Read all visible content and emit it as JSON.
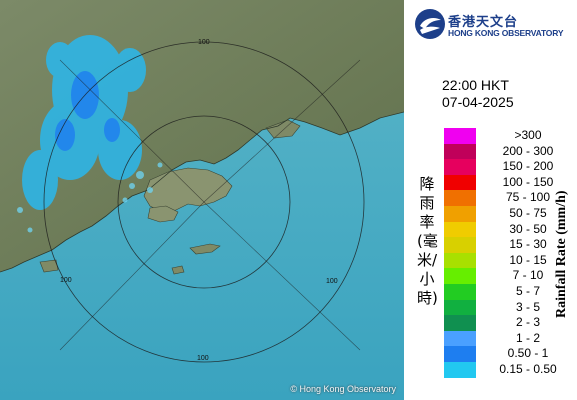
{
  "header": {
    "agency_zh": "香港天文台",
    "agency_en": "HONG KONG OBSERVATORY",
    "time": "22:00 HKT",
    "date": "07-04-2025"
  },
  "legend": {
    "axis_label_zh": "降雨率(毫米/小時)",
    "axis_label_en": "Rainfall Rate (mm/h)",
    "items": [
      {
        "label": ">300",
        "color": "#f000f0"
      },
      {
        "label": "200 - 300",
        "color": "#c0005a"
      },
      {
        "label": "150 - 200",
        "color": "#e6005e"
      },
      {
        "label": "100 - 150",
        "color": "#f00000"
      },
      {
        "label": "75 - 100",
        "color": "#f07000"
      },
      {
        "label": "50 - 75",
        "color": "#f0a000"
      },
      {
        "label": "30 - 50",
        "color": "#f0cc00"
      },
      {
        "label": "15 - 30",
        "color": "#d8d000"
      },
      {
        "label": "10 - 15",
        "color": "#a8e000"
      },
      {
        "label": "7 - 10",
        "color": "#66ee00"
      },
      {
        "label": "5 - 7",
        "color": "#22cc22"
      },
      {
        "label": "3 - 5",
        "color": "#11b040"
      },
      {
        "label": "2 - 3",
        "color": "#109050"
      },
      {
        "label": "1 - 2",
        "color": "#4aa0ff"
      },
      {
        "label": "0.50 - 1",
        "color": "#1e7ef0"
      },
      {
        "label": "0.15 - 0.50",
        "color": "#22c8f0"
      }
    ]
  },
  "map": {
    "range_ring_label": "100",
    "copyright": "© Hong Kong Observatory"
  }
}
